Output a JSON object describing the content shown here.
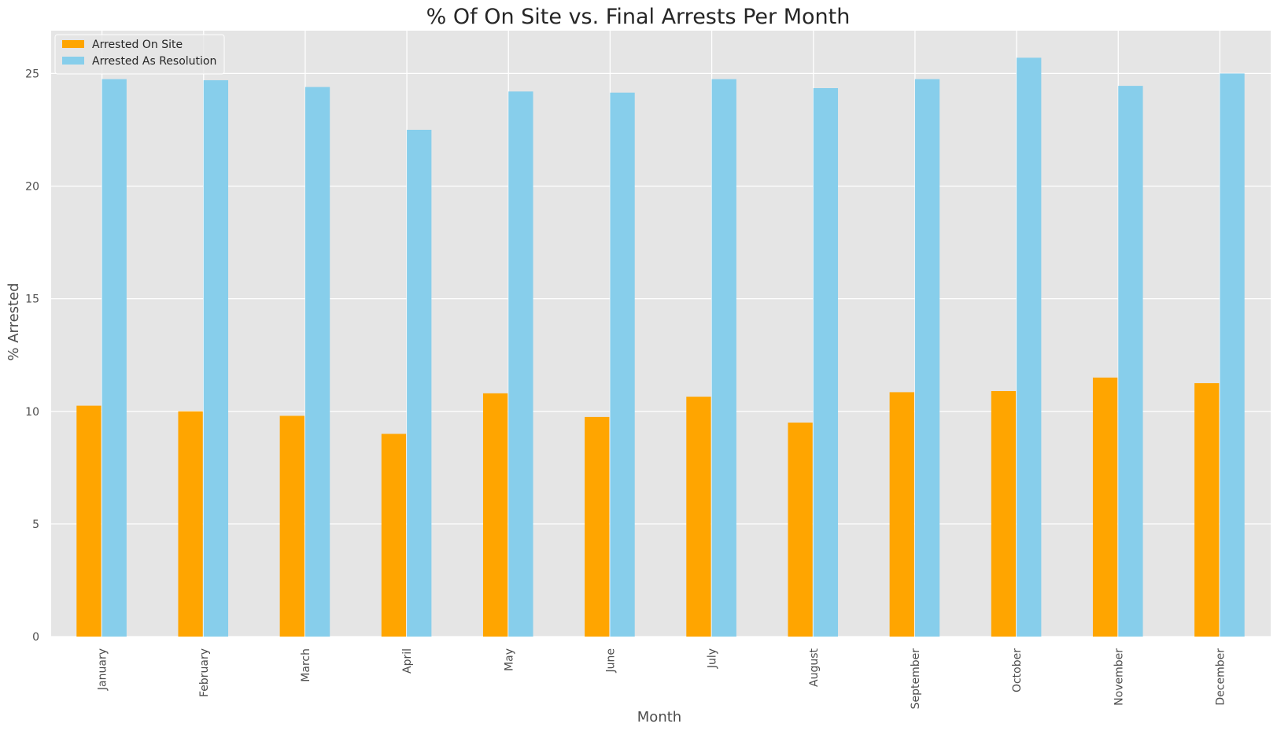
{
  "chart_data": {
    "type": "bar",
    "title": "% Of On Site vs. Final Arrests Per Month",
    "xlabel": "Month",
    "ylabel": "% Arrested",
    "categories": [
      "January",
      "February",
      "March",
      "April",
      "May",
      "June",
      "July",
      "August",
      "September",
      "October",
      "November",
      "December"
    ],
    "series": [
      {
        "name": "Arrested On Site",
        "color": "#FFA500",
        "values": [
          10.25,
          10.0,
          9.8,
          9.0,
          10.8,
          9.75,
          10.65,
          9.5,
          10.85,
          10.9,
          11.5,
          11.25
        ]
      },
      {
        "name": "Arrested As Resolution",
        "color": "#87CEEB",
        "values": [
          24.75,
          24.7,
          24.4,
          22.5,
          24.2,
          24.15,
          24.75,
          24.35,
          24.75,
          25.7,
          24.45,
          25.0
        ]
      }
    ],
    "ylim": [
      0,
      26.9
    ],
    "yticks": [
      0,
      5,
      10,
      15,
      20,
      25
    ],
    "grid": true,
    "legend_position": "top-left",
    "colors": {
      "plot_background": "#E5E5E5",
      "grid": "#FFFFFF"
    }
  }
}
